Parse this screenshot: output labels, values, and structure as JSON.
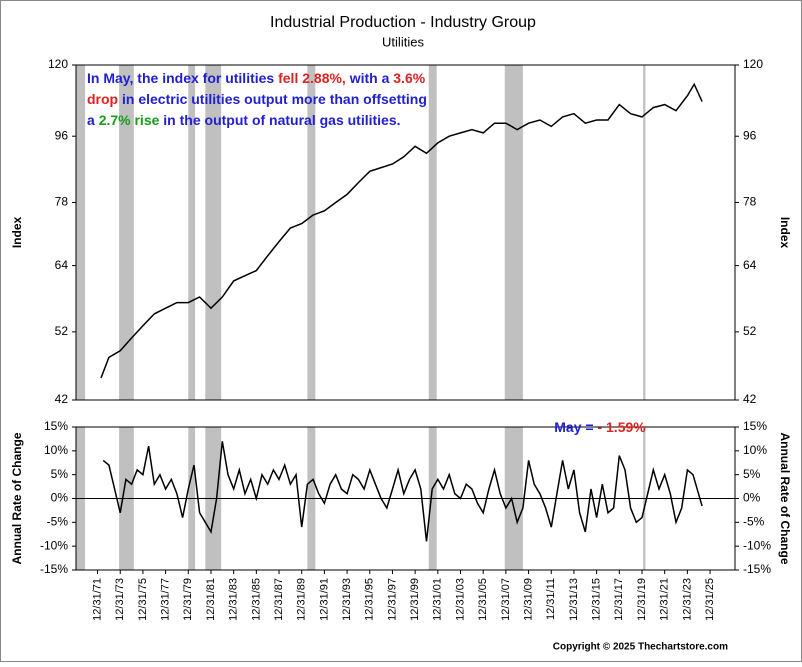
{
  "chart_data": [
    {
      "type": "line",
      "title": "Industrial Production - Industry Group",
      "subtitle": "Utilities",
      "y_label": "Index",
      "log_scale": true,
      "ylim": [
        42,
        120
      ],
      "yticks": [
        42,
        52,
        64,
        78,
        96,
        120
      ],
      "xlim": [
        1970.1,
        2028.2
      ],
      "recessions": [
        [
          1970.1,
          1970.9
        ],
        [
          1973.9,
          1975.2
        ],
        [
          1980.0,
          1980.6
        ],
        [
          1981.5,
          1982.9
        ],
        [
          1990.5,
          1991.2
        ],
        [
          2001.2,
          2001.9
        ],
        [
          2007.9,
          2009.5
        ],
        [
          2020.1,
          2020.3
        ]
      ],
      "recession_color": "#c0c0c0",
      "annotation": [
        [
          {
            "text": "In May, the index for utilities ",
            "color": "#1f1fd0"
          },
          {
            "text": "fell 2.88%,",
            "color": "#e02020"
          },
          {
            "text": " with a ",
            "color": "#1f1fd0"
          },
          {
            "text": "3.6%",
            "color": "#e02020"
          }
        ],
        [
          {
            "text": "drop",
            "color": "#e02020"
          },
          {
            "text": " in electric utilities output more than offsetting",
            "color": "#1f1fd0"
          }
        ],
        [
          {
            "text": "a ",
            "color": "#1f1fd0"
          },
          {
            "text": "2.7% rise",
            "color": "#1a9a1a"
          },
          {
            "text": " in the output of natural gas utilities.",
            "color": "#1f1fd0"
          }
        ]
      ],
      "series": [
        {
          "name": "Index",
          "color": "#000000",
          "x": [
            1972.3,
            1973,
            1974,
            1975,
            1976,
            1977,
            1978,
            1979,
            1980,
            1981,
            1982,
            1983,
            1984,
            1985,
            1986,
            1987,
            1988,
            1989,
            1990,
            1991,
            1992,
            1993,
            1994,
            1995,
            1996,
            1997,
            1998,
            1999,
            2000,
            2001,
            2002,
            2003,
            2004,
            2005,
            2006,
            2007,
            2008,
            2009,
            2010,
            2011,
            2012,
            2013,
            2014,
            2015,
            2016,
            2017,
            2018,
            2019,
            2020,
            2021,
            2022,
            2023,
            2024,
            2024.6,
            2025.3
          ],
          "values": [
            45,
            48,
            49,
            51,
            53,
            55,
            56,
            57,
            57,
            58,
            56,
            58,
            61,
            62,
            63,
            66,
            69,
            72,
            73,
            75,
            76,
            78,
            80,
            83,
            86,
            87,
            88,
            90,
            93,
            91,
            94,
            96,
            97,
            98,
            97,
            100,
            100,
            98,
            100,
            101,
            99,
            102,
            103,
            100,
            101,
            101,
            106,
            103,
            102,
            105,
            106,
            104,
            109,
            113,
            107
          ]
        }
      ]
    },
    {
      "type": "line",
      "y_label": "Annual Rate of Change",
      "ylim": [
        -15,
        15
      ],
      "yticks": [
        {
          "value": -15,
          "label": "-15%"
        },
        {
          "value": -10,
          "label": "-10%"
        },
        {
          "value": -5,
          "label": "-5%"
        },
        {
          "value": 0,
          "label": "0%"
        },
        {
          "value": 5,
          "label": "5%"
        },
        {
          "value": 10,
          "label": "10%"
        },
        {
          "value": 15,
          "label": "15%"
        }
      ],
      "xlim": [
        1970.1,
        2028.2
      ],
      "xticks": [
        {
          "value": 1972,
          "label": "12/31/71"
        },
        {
          "value": 1974,
          "label": "12/31/73"
        },
        {
          "value": 1976,
          "label": "12/31/75"
        },
        {
          "value": 1978,
          "label": "12/31/77"
        },
        {
          "value": 1980,
          "label": "12/31/79"
        },
        {
          "value": 1982,
          "label": "12/31/81"
        },
        {
          "value": 1984,
          "label": "12/31/83"
        },
        {
          "value": 1986,
          "label": "12/31/85"
        },
        {
          "value": 1988,
          "label": "12/31/87"
        },
        {
          "value": 1990,
          "label": "12/31/89"
        },
        {
          "value": 1992,
          "label": "12/31/91"
        },
        {
          "value": 1994,
          "label": "12/31/93"
        },
        {
          "value": 1996,
          "label": "12/31/95"
        },
        {
          "value": 1998,
          "label": "12/31/97"
        },
        {
          "value": 2000,
          "label": "12/31/99"
        },
        {
          "value": 2002,
          "label": "12/31/01"
        },
        {
          "value": 2004,
          "label": "12/31/03"
        },
        {
          "value": 2006,
          "label": "12/31/05"
        },
        {
          "value": 2008,
          "label": "12/31/07"
        },
        {
          "value": 2010,
          "label": "12/31/09"
        },
        {
          "value": 2012,
          "label": "12/31/11"
        },
        {
          "value": 2014,
          "label": "12/31/13"
        },
        {
          "value": 2016,
          "label": "12/31/15"
        },
        {
          "value": 2018,
          "label": "12/31/17"
        },
        {
          "value": 2020,
          "label": "12/31/19"
        },
        {
          "value": 2022,
          "label": "12/31/21"
        },
        {
          "value": 2024,
          "label": "12/31/23"
        },
        {
          "value": 2026,
          "label": "12/31/25"
        }
      ],
      "annotation": [
        [
          {
            "text": "May = ",
            "color": "#1f1fd0"
          },
          {
            "text": "- 1.59%",
            "color": "#e02020"
          }
        ]
      ],
      "series": [
        {
          "name": "Annual Rate of Change",
          "color": "#000000",
          "x": [
            1972.5,
            1973,
            1973.5,
            1974,
            1974.5,
            1975,
            1975.5,
            1976,
            1976.5,
            1977,
            1977.5,
            1978,
            1978.5,
            1979,
            1979.5,
            1980,
            1980.5,
            1981,
            1981.5,
            1982,
            1982.5,
            1983,
            1983.5,
            1984,
            1984.5,
            1985,
            1985.5,
            1986,
            1986.5,
            1987,
            1987.5,
            1988,
            1988.5,
            1989,
            1989.5,
            1990,
            1990.5,
            1991,
            1991.5,
            1992,
            1992.5,
            1993,
            1993.5,
            1994,
            1994.5,
            1995,
            1995.5,
            1996,
            1996.5,
            1997,
            1997.5,
            1998,
            1998.5,
            1999,
            1999.5,
            2000,
            2000.5,
            2001,
            2001.5,
            2002,
            2002.5,
            2003,
            2003.5,
            2004,
            2004.5,
            2005,
            2005.5,
            2006,
            2006.5,
            2007,
            2007.5,
            2008,
            2008.5,
            2009,
            2009.5,
            2010,
            2010.5,
            2011,
            2011.5,
            2012,
            2012.5,
            2013,
            2013.5,
            2014,
            2014.5,
            2015,
            2015.5,
            2016,
            2016.5,
            2017,
            2017.5,
            2018,
            2018.5,
            2019,
            2019.5,
            2020,
            2020.5,
            2021,
            2021.5,
            2022,
            2022.5,
            2023,
            2023.5,
            2024,
            2024.5,
            2025.3
          ],
          "values": [
            8,
            7,
            2,
            -3,
            4,
            3,
            6,
            5,
            11,
            3,
            5,
            2,
            4,
            1,
            -4,
            2,
            7,
            -3,
            -5,
            -7,
            0,
            12,
            5,
            2,
            6,
            1,
            4,
            0,
            5,
            3,
            6,
            4,
            7,
            3,
            5,
            -6,
            3,
            4,
            1,
            -1,
            3,
            5,
            2,
            1,
            5,
            4,
            2,
            6,
            3,
            0,
            -2,
            2,
            6,
            1,
            4,
            6,
            2,
            -9,
            2,
            4,
            2,
            5,
            1,
            0,
            3,
            2,
            -1,
            -3,
            2,
            6,
            1,
            -2,
            0,
            -5,
            -2,
            8,
            3,
            1,
            -2,
            -6,
            1,
            8,
            2,
            6,
            -3,
            -7,
            2,
            -4,
            3,
            -3,
            -2,
            9,
            6,
            -2,
            -5,
            -4,
            1,
            6,
            2,
            5,
            1,
            -5,
            -2,
            6,
            5,
            -1.59
          ]
        }
      ]
    }
  ],
  "copyright": "Copyright © 2025 Thechartstore.com"
}
